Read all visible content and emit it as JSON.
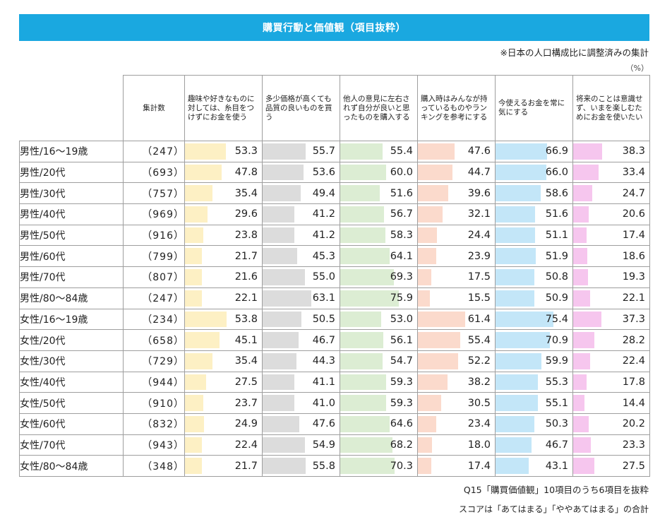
{
  "title": "購買行動と価値観（項目抜粋）",
  "note_top": "※日本の人口構成比に調整済みの集計",
  "unit": "（%）",
  "note_question": "Q15「購買価値観」10項目のうち6項目を抜粋",
  "note_score": "スコアは「あてはまる」「ややあてはまる」の合計",
  "chart_data": {
    "type": "table",
    "count_header": "集計数",
    "xlim": [
      0,
      100
    ],
    "columns": [
      {
        "label": "趣味や好きなものに対しては、糸目をつけずにお金を使う",
        "color": "#fdf0c4"
      },
      {
        "label": "多少価格が高くても品質の良いものを買う",
        "color": "#dcdcdc"
      },
      {
        "label": "他人の意見に左右されず自分が良いと思ったものを購入する",
        "color": "#dcedd3"
      },
      {
        "label": "購入時はみんなが持っているものやランキングを参考にする",
        "color": "#fbdacc"
      },
      {
        "label": "今使えるお金を常に気にする",
        "color": "#c3e6f8"
      },
      {
        "label": "将来のことは意識せず、いまを楽しむためにお金を使いたい",
        "color": "#f6c6ee"
      }
    ],
    "rows": [
      {
        "label": "男性/16～19歳",
        "count": "（247）",
        "values": [
          53.3,
          55.7,
          55.4,
          47.6,
          66.9,
          38.3
        ]
      },
      {
        "label": "男性/20代",
        "count": "（693）",
        "values": [
          47.8,
          53.6,
          60.0,
          44.7,
          66.0,
          33.4
        ]
      },
      {
        "label": "男性/30代",
        "count": "（757）",
        "values": [
          35.4,
          49.4,
          51.6,
          39.6,
          58.6,
          24.7
        ]
      },
      {
        "label": "男性/40代",
        "count": "（969）",
        "values": [
          29.6,
          41.2,
          56.7,
          32.1,
          51.6,
          20.6
        ]
      },
      {
        "label": "男性/50代",
        "count": "（916）",
        "values": [
          23.8,
          41.2,
          58.3,
          24.4,
          51.1,
          17.4
        ]
      },
      {
        "label": "男性/60代",
        "count": "（799）",
        "values": [
          21.7,
          45.3,
          64.1,
          23.9,
          51.9,
          18.6
        ]
      },
      {
        "label": "男性/70代",
        "count": "（807）",
        "values": [
          21.6,
          55.0,
          69.3,
          17.5,
          50.8,
          19.3
        ]
      },
      {
        "label": "男性/80～84歳",
        "count": "（247）",
        "values": [
          22.1,
          63.1,
          75.9,
          15.5,
          50.9,
          22.1
        ]
      },
      {
        "label": "女性/16～19歳",
        "count": "（234）",
        "values": [
          53.8,
          50.5,
          53.0,
          61.4,
          75.4,
          37.3
        ]
      },
      {
        "label": "女性/20代",
        "count": "（658）",
        "values": [
          45.1,
          46.7,
          56.1,
          55.4,
          70.9,
          28.2
        ]
      },
      {
        "label": "女性/30代",
        "count": "（729）",
        "values": [
          35.4,
          44.3,
          54.7,
          52.2,
          59.9,
          22.4
        ]
      },
      {
        "label": "女性/40代",
        "count": "（944）",
        "values": [
          27.5,
          41.1,
          59.3,
          38.2,
          55.3,
          17.8
        ]
      },
      {
        "label": "女性/50代",
        "count": "（910）",
        "values": [
          23.7,
          41.0,
          59.3,
          30.5,
          55.1,
          14.4
        ]
      },
      {
        "label": "女性/60代",
        "count": "（832）",
        "values": [
          24.9,
          47.6,
          64.6,
          23.4,
          50.3,
          20.2
        ]
      },
      {
        "label": "女性/70代",
        "count": "（943）",
        "values": [
          22.4,
          54.9,
          68.2,
          18.0,
          46.7,
          23.3
        ]
      },
      {
        "label": "女性/80～84歳",
        "count": "（348）",
        "values": [
          21.7,
          55.8,
          70.3,
          17.4,
          43.1,
          27.5
        ]
      }
    ]
  }
}
